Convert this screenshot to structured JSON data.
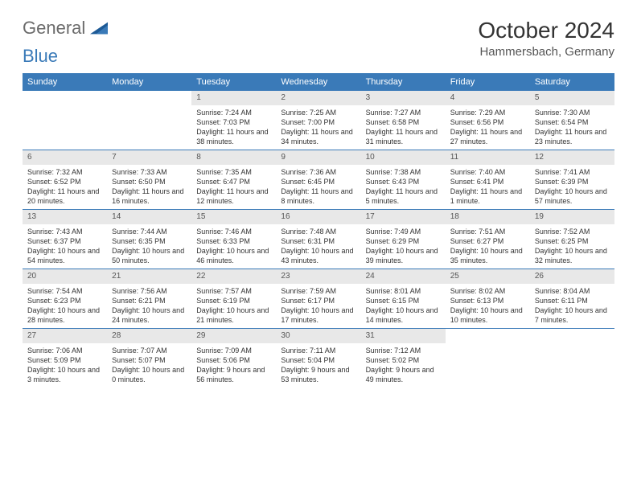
{
  "logo": {
    "text1": "General",
    "text2": "Blue"
  },
  "title": "October 2024",
  "location": "Hammersbach, Germany",
  "colors": {
    "header_bg": "#3a7ab8",
    "header_text": "#ffffff",
    "daynum_bg": "#e8e8e8",
    "border": "#3a7ab8",
    "body_text": "#333333"
  },
  "day_headers": [
    "Sunday",
    "Monday",
    "Tuesday",
    "Wednesday",
    "Thursday",
    "Friday",
    "Saturday"
  ],
  "weeks": [
    [
      {
        "empty": true
      },
      {
        "empty": true
      },
      {
        "num": "1",
        "sunrise": "7:24 AM",
        "sunset": "7:03 PM",
        "daylight": "11 hours and 38 minutes."
      },
      {
        "num": "2",
        "sunrise": "7:25 AM",
        "sunset": "7:00 PM",
        "daylight": "11 hours and 34 minutes."
      },
      {
        "num": "3",
        "sunrise": "7:27 AM",
        "sunset": "6:58 PM",
        "daylight": "11 hours and 31 minutes."
      },
      {
        "num": "4",
        "sunrise": "7:29 AM",
        "sunset": "6:56 PM",
        "daylight": "11 hours and 27 minutes."
      },
      {
        "num": "5",
        "sunrise": "7:30 AM",
        "sunset": "6:54 PM",
        "daylight": "11 hours and 23 minutes."
      }
    ],
    [
      {
        "num": "6",
        "sunrise": "7:32 AM",
        "sunset": "6:52 PM",
        "daylight": "11 hours and 20 minutes."
      },
      {
        "num": "7",
        "sunrise": "7:33 AM",
        "sunset": "6:50 PM",
        "daylight": "11 hours and 16 minutes."
      },
      {
        "num": "8",
        "sunrise": "7:35 AM",
        "sunset": "6:47 PM",
        "daylight": "11 hours and 12 minutes."
      },
      {
        "num": "9",
        "sunrise": "7:36 AM",
        "sunset": "6:45 PM",
        "daylight": "11 hours and 8 minutes."
      },
      {
        "num": "10",
        "sunrise": "7:38 AM",
        "sunset": "6:43 PM",
        "daylight": "11 hours and 5 minutes."
      },
      {
        "num": "11",
        "sunrise": "7:40 AM",
        "sunset": "6:41 PM",
        "daylight": "11 hours and 1 minute."
      },
      {
        "num": "12",
        "sunrise": "7:41 AM",
        "sunset": "6:39 PM",
        "daylight": "10 hours and 57 minutes."
      }
    ],
    [
      {
        "num": "13",
        "sunrise": "7:43 AM",
        "sunset": "6:37 PM",
        "daylight": "10 hours and 54 minutes."
      },
      {
        "num": "14",
        "sunrise": "7:44 AM",
        "sunset": "6:35 PM",
        "daylight": "10 hours and 50 minutes."
      },
      {
        "num": "15",
        "sunrise": "7:46 AM",
        "sunset": "6:33 PM",
        "daylight": "10 hours and 46 minutes."
      },
      {
        "num": "16",
        "sunrise": "7:48 AM",
        "sunset": "6:31 PM",
        "daylight": "10 hours and 43 minutes."
      },
      {
        "num": "17",
        "sunrise": "7:49 AM",
        "sunset": "6:29 PM",
        "daylight": "10 hours and 39 minutes."
      },
      {
        "num": "18",
        "sunrise": "7:51 AM",
        "sunset": "6:27 PM",
        "daylight": "10 hours and 35 minutes."
      },
      {
        "num": "19",
        "sunrise": "7:52 AM",
        "sunset": "6:25 PM",
        "daylight": "10 hours and 32 minutes."
      }
    ],
    [
      {
        "num": "20",
        "sunrise": "7:54 AM",
        "sunset": "6:23 PM",
        "daylight": "10 hours and 28 minutes."
      },
      {
        "num": "21",
        "sunrise": "7:56 AM",
        "sunset": "6:21 PM",
        "daylight": "10 hours and 24 minutes."
      },
      {
        "num": "22",
        "sunrise": "7:57 AM",
        "sunset": "6:19 PM",
        "daylight": "10 hours and 21 minutes."
      },
      {
        "num": "23",
        "sunrise": "7:59 AM",
        "sunset": "6:17 PM",
        "daylight": "10 hours and 17 minutes."
      },
      {
        "num": "24",
        "sunrise": "8:01 AM",
        "sunset": "6:15 PM",
        "daylight": "10 hours and 14 minutes."
      },
      {
        "num": "25",
        "sunrise": "8:02 AM",
        "sunset": "6:13 PM",
        "daylight": "10 hours and 10 minutes."
      },
      {
        "num": "26",
        "sunrise": "8:04 AM",
        "sunset": "6:11 PM",
        "daylight": "10 hours and 7 minutes."
      }
    ],
    [
      {
        "num": "27",
        "sunrise": "7:06 AM",
        "sunset": "5:09 PM",
        "daylight": "10 hours and 3 minutes."
      },
      {
        "num": "28",
        "sunrise": "7:07 AM",
        "sunset": "5:07 PM",
        "daylight": "10 hours and 0 minutes."
      },
      {
        "num": "29",
        "sunrise": "7:09 AM",
        "sunset": "5:06 PM",
        "daylight": "9 hours and 56 minutes."
      },
      {
        "num": "30",
        "sunrise": "7:11 AM",
        "sunset": "5:04 PM",
        "daylight": "9 hours and 53 minutes."
      },
      {
        "num": "31",
        "sunrise": "7:12 AM",
        "sunset": "5:02 PM",
        "daylight": "9 hours and 49 minutes."
      },
      {
        "empty": true
      },
      {
        "empty": true
      }
    ]
  ],
  "labels": {
    "sunrise": "Sunrise:",
    "sunset": "Sunset:",
    "daylight": "Daylight:"
  }
}
